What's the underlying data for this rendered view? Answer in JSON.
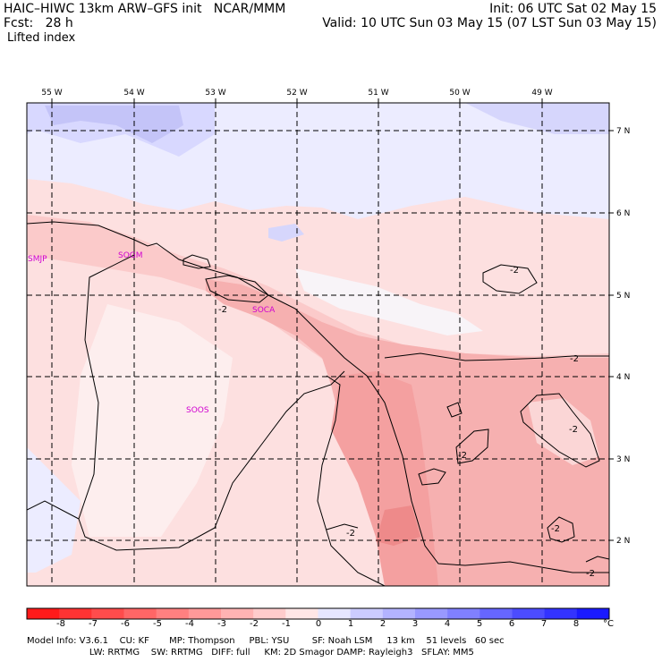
{
  "header": {
    "left1": "HAIC–HIWC 13km ARW–GFS init   NCAR/MMM",
    "left2": "Fcst:   28 h",
    "left3": "Lifted index",
    "right1": "Init: 06 UTC Sat 02 May 15",
    "right2": "Valid: 10 UTC Sun 03 May 15 (07 LST Sun 03 May 15)"
  },
  "map": {
    "lon_labels": [
      "55 W",
      "54 W",
      "53 W",
      "52 W",
      "51 W",
      "50 W",
      "49 W"
    ],
    "lat_labels": [
      "7 N",
      "6 N",
      "5 N",
      "4 N",
      "3 N",
      "2 N"
    ],
    "stations": [
      "SMJP",
      "SOGM",
      "SOCA",
      "SOOS"
    ],
    "contour_label": "-2",
    "colors": {
      "neutral": "#ffffff",
      "light_pink": "#fde0e0",
      "pink": "#fbcaca",
      "salmon": "#f6a8a8",
      "light_blue": "#e6e6ff",
      "blue": "#c8c8fa"
    }
  },
  "colorbar": {
    "labels": [
      "-8",
      "-7",
      "-6",
      "-5",
      "-4",
      "-3",
      "-2",
      "-1",
      "0",
      "1",
      "2",
      "3",
      "4",
      "5",
      "6",
      "7",
      "8"
    ],
    "unit": "°C",
    "colors": [
      "#ff1a1a",
      "#ff3333",
      "#ff4c4c",
      "#ff6666",
      "#ff8080",
      "#ff9999",
      "#ffb3b3",
      "#ffcccc",
      "#ffe6e6",
      "#e6e6ff",
      "#ccccff",
      "#b3b3ff",
      "#9999ff",
      "#8080ff",
      "#6666ff",
      "#4c4cff",
      "#3333ff",
      "#1a1aff"
    ]
  },
  "footer": {
    "line1": "Model Info: V3.6.1    CU: KF       MP: Thompson     PBL: YSU        SF: Noah LSM     13 km    51 levels   60 sec",
    "line2": "                      LW: RRTMG    SW: RRTMG   DIFF: full     KM: 2D Smagor DAMP: Rayleigh3   SFLAY: MM5"
  }
}
